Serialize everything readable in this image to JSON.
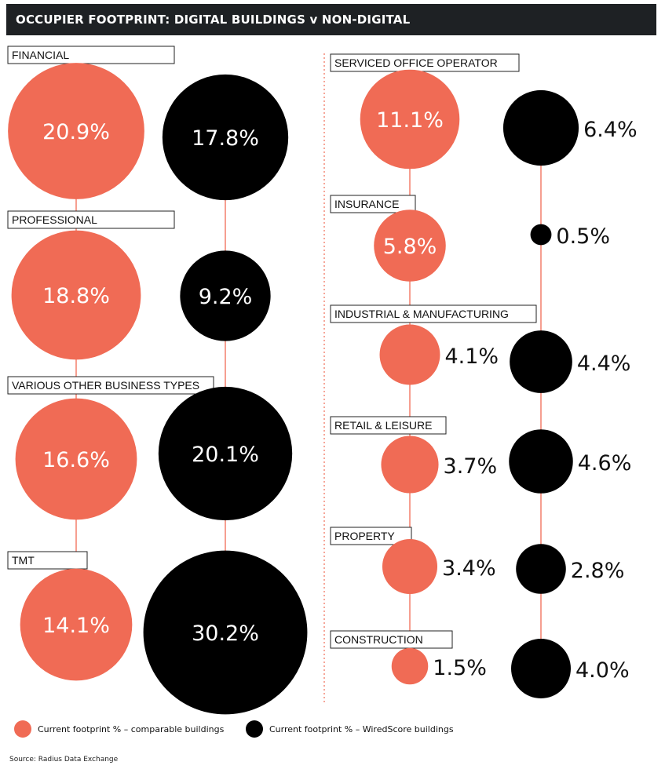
{
  "title": "OCCUPIER FOOTPRINT: DIGITAL BUILDINGS v NON-DIGITAL",
  "colors": {
    "comparable": "#f06b55",
    "wiredscore": "#000000",
    "connector": "#f06b55",
    "divider": "#f06b55"
  },
  "legend": {
    "comparable": "Current footprint % – comparable buildings",
    "wiredscore": "Current footprint % – WiredScore buildings"
  },
  "source": "Source: Radius Data Exchange",
  "chart_data": {
    "type": "bubble",
    "series": [
      {
        "name": "Current footprint % – comparable buildings"
      },
      {
        "name": "Current footprint % – WiredScore buildings"
      }
    ],
    "categories": [
      "FINANCIAL",
      "PROFESSIONAL",
      "VARIOUS OTHER BUSINESS TYPES",
      "TMT",
      "SERVICED OFFICE OPERATOR",
      "INSURANCE",
      "INDUSTRIAL & MANUFACTURING",
      "RETAIL & LEISURE",
      "PROPERTY",
      "CONSTRUCTION"
    ],
    "comparable_values": [
      20.9,
      18.8,
      16.6,
      14.1,
      11.1,
      5.8,
      4.1,
      3.7,
      3.4,
      1.5
    ],
    "wiredscore_values": [
      17.8,
      9.2,
      20.1,
      30.2,
      6.4,
      0.5,
      4.4,
      4.6,
      2.8,
      4.0
    ],
    "comparable_labels": [
      "20.9%",
      "18.8%",
      "16.6%",
      "14.1%",
      "11.1%",
      "5.8%",
      "4.1%",
      "3.7%",
      "3.4%",
      "1.5%"
    ],
    "wiredscore_labels": [
      "17.8%",
      "9.2%",
      "20.1%",
      "30.2%",
      "6.4%",
      "0.5%",
      "4.4%",
      "4.6%",
      "2.8%",
      "4.0%"
    ]
  }
}
